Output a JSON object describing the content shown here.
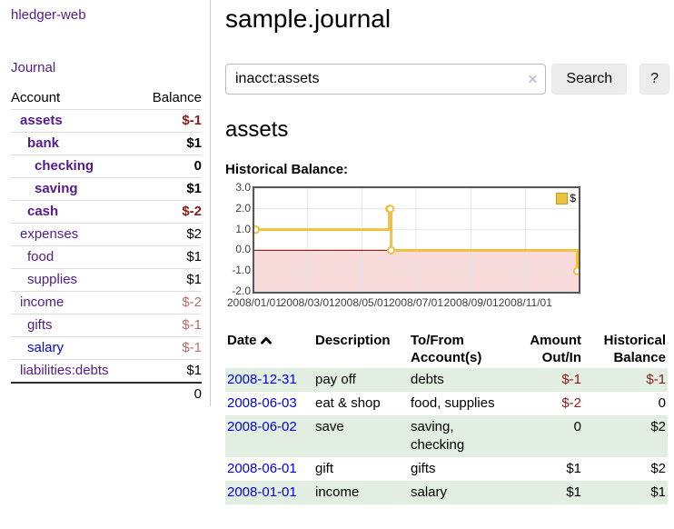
{
  "app": {
    "title": "hledger-web"
  },
  "sidebar": {
    "journal_label": "Journal",
    "headers": {
      "account": "Account",
      "balance": "Balance"
    },
    "accounts": [
      {
        "name": "assets",
        "balance": "$-1",
        "depth": 1,
        "bold": true,
        "tone": "neg",
        "link": "purple"
      },
      {
        "name": "bank",
        "balance": "$1",
        "depth": 2,
        "bold": true,
        "tone": "",
        "link": "purple"
      },
      {
        "name": "checking",
        "balance": "0",
        "depth": 3,
        "bold": true,
        "tone": "",
        "link": "purple"
      },
      {
        "name": "saving",
        "balance": "$1",
        "depth": 3,
        "bold": true,
        "tone": "",
        "link": "purple"
      },
      {
        "name": "cash",
        "balance": "$-2",
        "depth": 2,
        "bold": true,
        "tone": "neg",
        "link": "purple"
      },
      {
        "name": "expenses",
        "balance": "$2",
        "depth": 1,
        "bold": false,
        "tone": "",
        "link": "purple"
      },
      {
        "name": "food",
        "balance": "$1",
        "depth": 2,
        "bold": false,
        "tone": "",
        "link": "purple"
      },
      {
        "name": "supplies",
        "balance": "$1",
        "depth": 2,
        "bold": false,
        "tone": "",
        "link": "purple"
      },
      {
        "name": "income",
        "balance": "$-2",
        "depth": 1,
        "bold": false,
        "tone": "negmuted",
        "link": "purple"
      },
      {
        "name": "gifts",
        "balance": "$-1",
        "depth": 2,
        "bold": false,
        "tone": "negmuted",
        "link": "purple"
      },
      {
        "name": "salary",
        "balance": "$-1",
        "depth": 2,
        "bold": false,
        "tone": "negmuted",
        "link": "blue"
      },
      {
        "name": "liabilities:debts",
        "balance": "$1",
        "depth": 1,
        "bold": false,
        "tone": "",
        "link": "purple"
      }
    ],
    "total": "0"
  },
  "header": {
    "title": "sample.journal"
  },
  "search": {
    "value": "inacct:assets",
    "clear_icon": "✕",
    "button_label": "Search",
    "help_label": "?"
  },
  "account_page": {
    "heading": "assets",
    "chart_label": "Historical Balance:"
  },
  "chart_data": {
    "type": "line",
    "style": "step",
    "title": "Historical Balance",
    "series": [
      {
        "name": "$",
        "color": "#edc240",
        "points": [
          {
            "date": "2008-01-01",
            "value": 1
          },
          {
            "date": "2008-06-01",
            "value": 2
          },
          {
            "date": "2008-06-02",
            "value": 2
          },
          {
            "date": "2008-06-03",
            "value": 0
          },
          {
            "date": "2008-12-31",
            "value": -1
          }
        ]
      }
    ],
    "x_ticks": [
      "2008/01/01",
      "2008/03/01",
      "2008/05/01",
      "2008/07/01",
      "2008/09/01",
      "2008/11/01"
    ],
    "y_ticks": [
      "3.0",
      "2.0",
      "1.0",
      "0.0",
      "-1.0",
      "-2.0"
    ],
    "ylim": [
      -2,
      3
    ],
    "grid": true,
    "legend_position": "top-right",
    "negative_region_color": "#f9dbdb",
    "zero_line_color": "#8b0000",
    "grid_color": "#e4e4e4"
  },
  "register": {
    "headers": {
      "date": "Date",
      "description": "Description",
      "accounts": "To/From Account(s)",
      "amount": "Amount Out/In",
      "balance": "Historical Balance"
    },
    "rows": [
      {
        "date": "2008-12-31",
        "description": "pay off",
        "accounts": "debts",
        "amount": "$-1",
        "amount_neg": true,
        "balance": "$-1",
        "balance_neg": true
      },
      {
        "date": "2008-06-03",
        "description": "eat & shop",
        "accounts": "food, supplies",
        "amount": "$-2",
        "amount_neg": true,
        "balance": "0",
        "balance_neg": false
      },
      {
        "date": "2008-06-02",
        "description": "save",
        "accounts": "saving, checking",
        "amount": "0",
        "amount_neg": false,
        "balance": "$2",
        "balance_neg": false
      },
      {
        "date": "2008-06-01",
        "description": "gift",
        "accounts": "gifts",
        "amount": "$1",
        "amount_neg": false,
        "balance": "$2",
        "balance_neg": false
      },
      {
        "date": "2008-01-01",
        "description": "income",
        "accounts": "salary",
        "amount": "$1",
        "amount_neg": false,
        "balance": "$1",
        "balance_neg": false
      }
    ]
  },
  "colors": {
    "accent_purple": "#551a8b",
    "link_blue": "#0000ee",
    "date_link_blue": "#0000dd",
    "negative": "#8b1a1a",
    "negative_muted": "#bd6c6c",
    "row_green": "#e2eee2",
    "chart_line": "#edc240",
    "chart_border": "#565656"
  }
}
